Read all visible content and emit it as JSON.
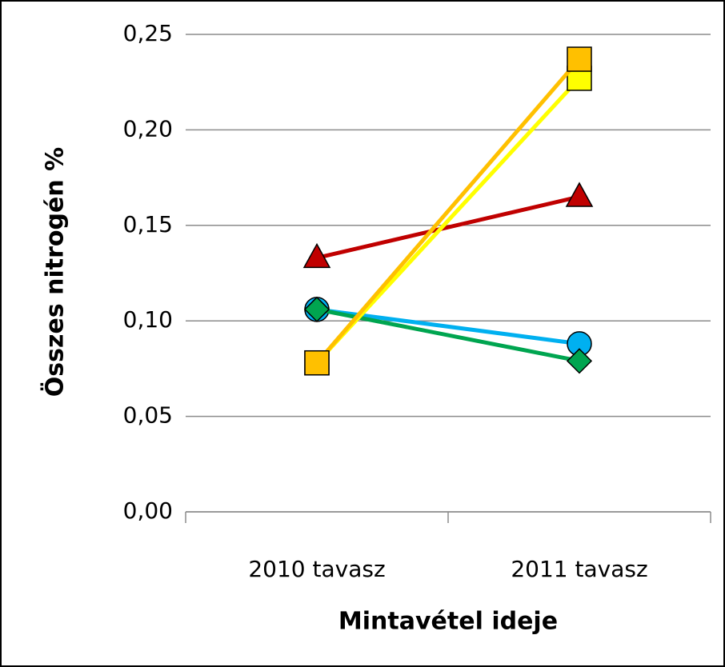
{
  "chart_data": {
    "type": "line",
    "xlabel": "Mintavétel ideje",
    "ylabel": "Összes nitrogén %",
    "categories": [
      "2010 tavasz",
      "2011 tavasz"
    ],
    "series": [
      {
        "color": "#c00000",
        "marker": "triangle",
        "values": [
          0.133,
          0.165
        ]
      },
      {
        "color": "#00b0f0",
        "marker": "circle",
        "values": [
          0.106,
          0.088
        ]
      },
      {
        "color": "#00a550",
        "marker": "diamond",
        "values": [
          0.106,
          0.079
        ]
      },
      {
        "color": "#ffff00",
        "marker": "square",
        "values": [
          0.078,
          0.227
        ]
      },
      {
        "color": "#ffc000",
        "marker": "square",
        "values": [
          0.078,
          0.237
        ]
      }
    ],
    "ylim": [
      0,
      0.25
    ],
    "yticks": [
      {
        "value": 0,
        "label": "0,00"
      },
      {
        "value": 0.05,
        "label": "0,05"
      },
      {
        "value": 0.1,
        "label": "0,10"
      },
      {
        "value": 0.15,
        "label": "0,15"
      },
      {
        "value": 0.2,
        "label": "0,20"
      },
      {
        "value": 0.25,
        "label": "0,25"
      }
    ],
    "grid": true
  }
}
